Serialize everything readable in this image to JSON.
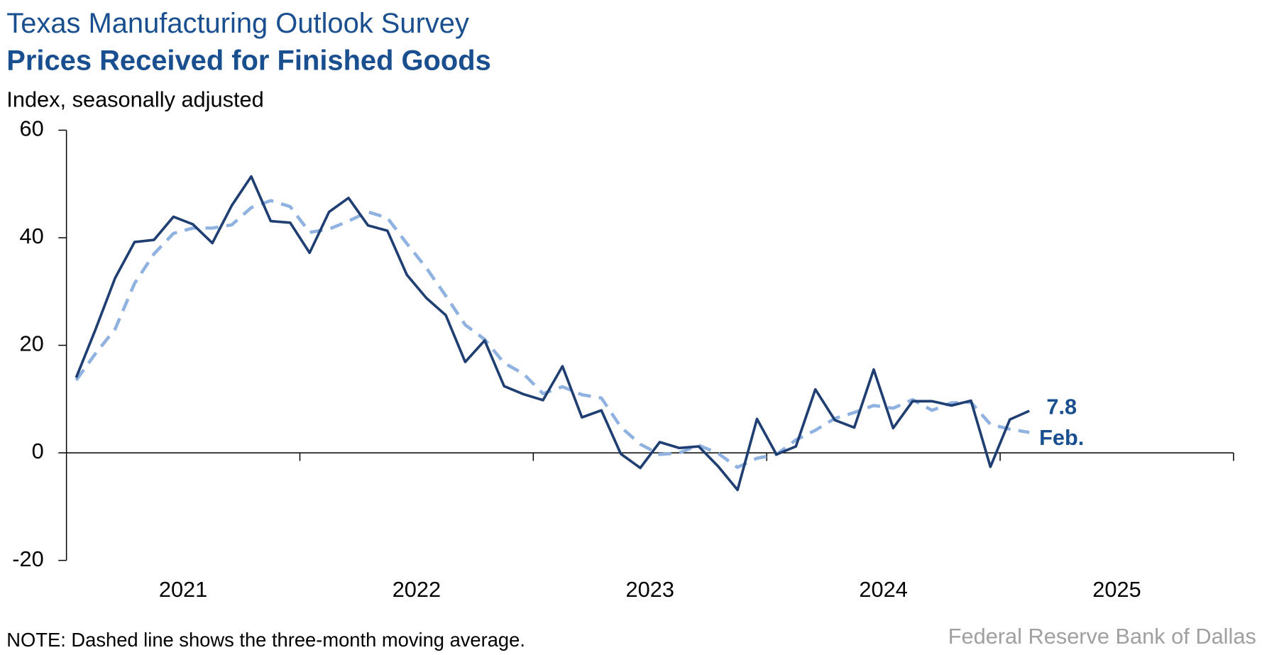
{
  "chart_data": {
    "type": "line",
    "title": "Texas Manufacturing Outlook Survey",
    "subtitle": "Prices Received for Finished Goods",
    "y_axis_label": "Index, seasonally adjusted",
    "note": "NOTE: Dashed line shows the three-month moving average.",
    "source": "Federal Reserve Bank of Dallas",
    "end_annotation": "Feb.",
    "year_labels": [
      "2021",
      "2022",
      "2023",
      "2024",
      "2025"
    ],
    "ylim": [
      -20,
      60
    ],
    "yticks": [
      -20,
      0,
      20,
      40,
      60
    ],
    "series": [
      {
        "name": "Index",
        "color": "#1f3f73",
        "dashed": false,
        "values": [
          14,
          23,
          32.5,
          39.2,
          39.6,
          43.9,
          42.5,
          39,
          46,
          51.4,
          43.1,
          42.8,
          37.2,
          44.8,
          47.4,
          42.3,
          41.3,
          33.1,
          28.8,
          25.6,
          16.9,
          20.9,
          12.4,
          10.9,
          9.8,
          16.1,
          6.6,
          7.9,
          -0.2,
          -2.8,
          2,
          0.9,
          1.2,
          -2.5,
          -6.9,
          6.3,
          -0.3,
          1.2,
          11.8,
          6.1,
          4.7,
          15.5,
          4.6,
          9.6,
          9.6,
          8.8,
          9.7,
          -2.6,
          6.2,
          7.8
        ]
      },
      {
        "name": "Three-month moving average",
        "color": "#8fb2e0",
        "dashed": true,
        "values": [
          13.5,
          18.5,
          23,
          31.5,
          37,
          40.8,
          41.8,
          41.8,
          42.4,
          45.6,
          46.9,
          45.8,
          41,
          41.6,
          43.1,
          44.8,
          43.7,
          38.9,
          34.4,
          29.2,
          23.8,
          21.1,
          16.7,
          14.7,
          11,
          12.3,
          10.8,
          10.2,
          4.8,
          1.6,
          -0.3,
          0,
          1.4,
          -0.1,
          -2.7,
          -1,
          -0.3,
          2.4,
          4.2,
          6.4,
          7.5,
          8.8,
          8.3,
          9.9,
          7.9,
          9.3,
          9.4,
          5.3,
          4.4,
          3.8
        ]
      }
    ]
  }
}
